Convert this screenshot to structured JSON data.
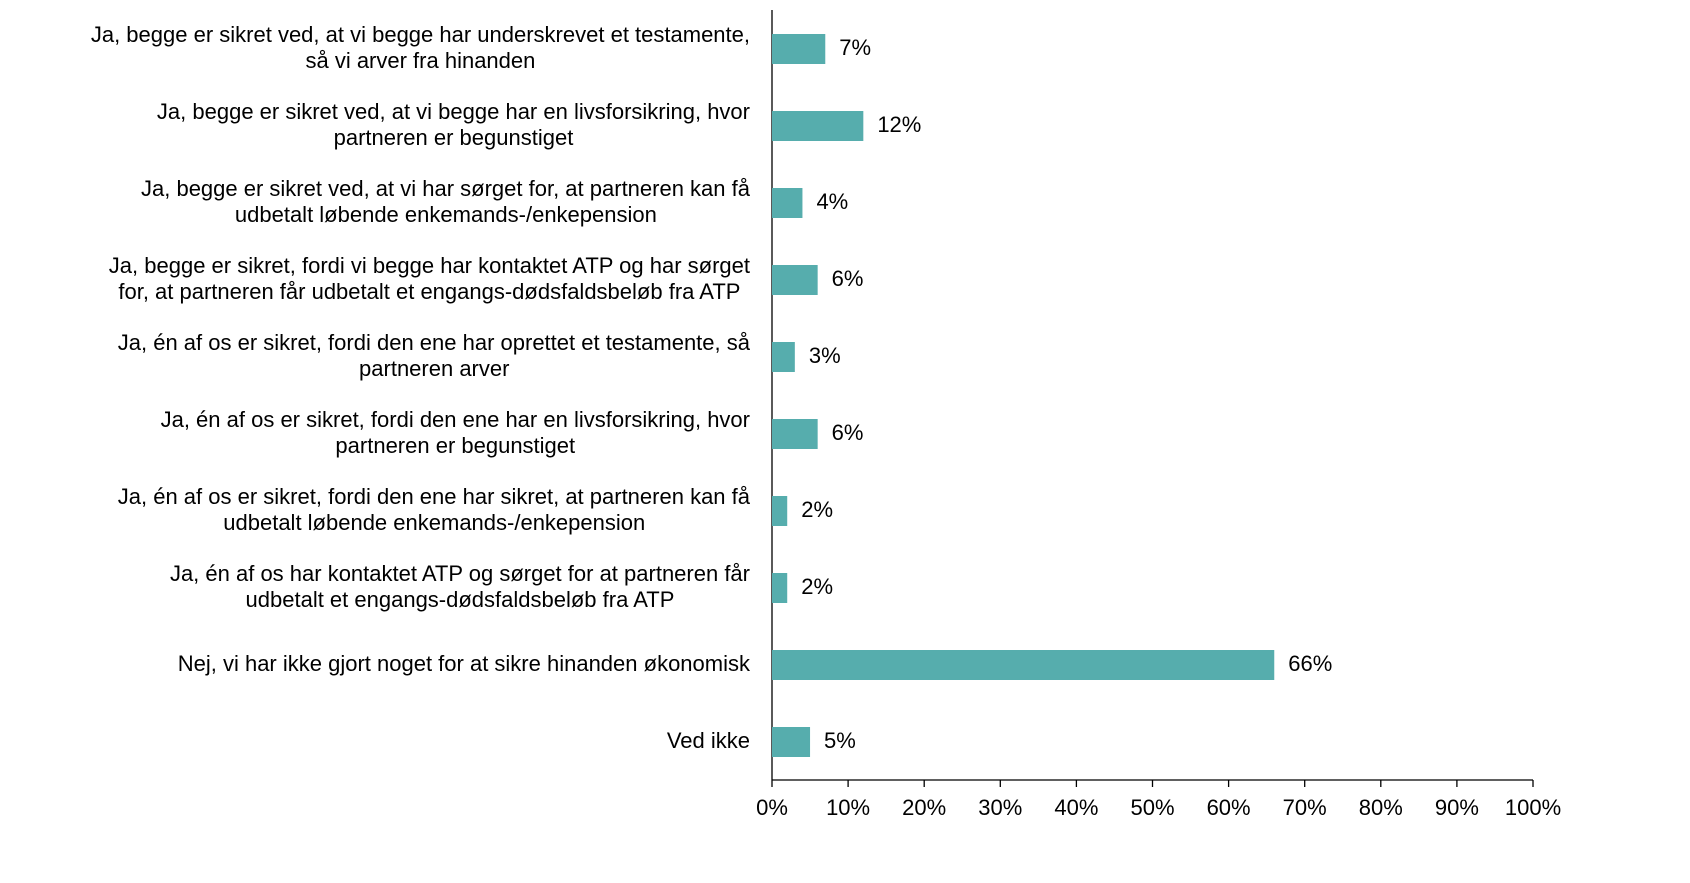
{
  "chart_data": {
    "type": "barh",
    "categories": [
      [
        "Ja, begge er sikret ved, at vi begge har underskrevet et testamente,",
        "så vi arver fra hinanden"
      ],
      [
        "Ja, begge er sikret ved, at vi begge har en livsforsikring, hvor",
        "partneren er begunstiget"
      ],
      [
        "Ja, begge er sikret ved, at vi har sørget for, at partneren kan få",
        "udbetalt løbende enkemands-/enkepension"
      ],
      [
        "Ja, begge er sikret, fordi vi begge har kontaktet ATP og har sørget",
        "for, at partneren får udbetalt et engangs-dødsfaldsbeløb fra ATP"
      ],
      [
        "Ja, én af os er sikret, fordi den ene har oprettet et testamente, så",
        "partneren arver"
      ],
      [
        "Ja, én af os er sikret, fordi den ene har en livsforsikring, hvor",
        "partneren er begunstiget"
      ],
      [
        "Ja, én af os er sikret, fordi den ene har sikret, at partneren kan få",
        "udbetalt løbende enkemands-/enkepension"
      ],
      [
        "Ja, én af os har kontaktet ATP og sørget for at partneren får",
        "udbetalt et engangs-dødsfaldsbeløb fra ATP"
      ],
      [
        "Nej, vi har ikke gjort noget for at sikre hinanden økonomisk"
      ],
      [
        "Ved ikke"
      ]
    ],
    "values": [
      7,
      12,
      4,
      6,
      3,
      6,
      2,
      2,
      66,
      5
    ],
    "value_labels": [
      "7%",
      "12%",
      "4%",
      "6%",
      "3%",
      "6%",
      "2%",
      "2%",
      "66%",
      "5%"
    ],
    "color": "#56adad",
    "xlim": [
      0,
      100
    ],
    "xticks": [
      {
        "value": 0,
        "label": "0%"
      },
      {
        "value": 10,
        "label": "10%"
      },
      {
        "value": 20,
        "label": "20%"
      },
      {
        "value": 30,
        "label": "30%"
      },
      {
        "value": 40,
        "label": "40%"
      },
      {
        "value": 50,
        "label": "50%"
      },
      {
        "value": 60,
        "label": "60%"
      },
      {
        "value": 70,
        "label": "70%"
      },
      {
        "value": 80,
        "label": "80%"
      },
      {
        "value": 90,
        "label": "90%"
      },
      {
        "value": 100,
        "label": "100%"
      }
    ]
  }
}
